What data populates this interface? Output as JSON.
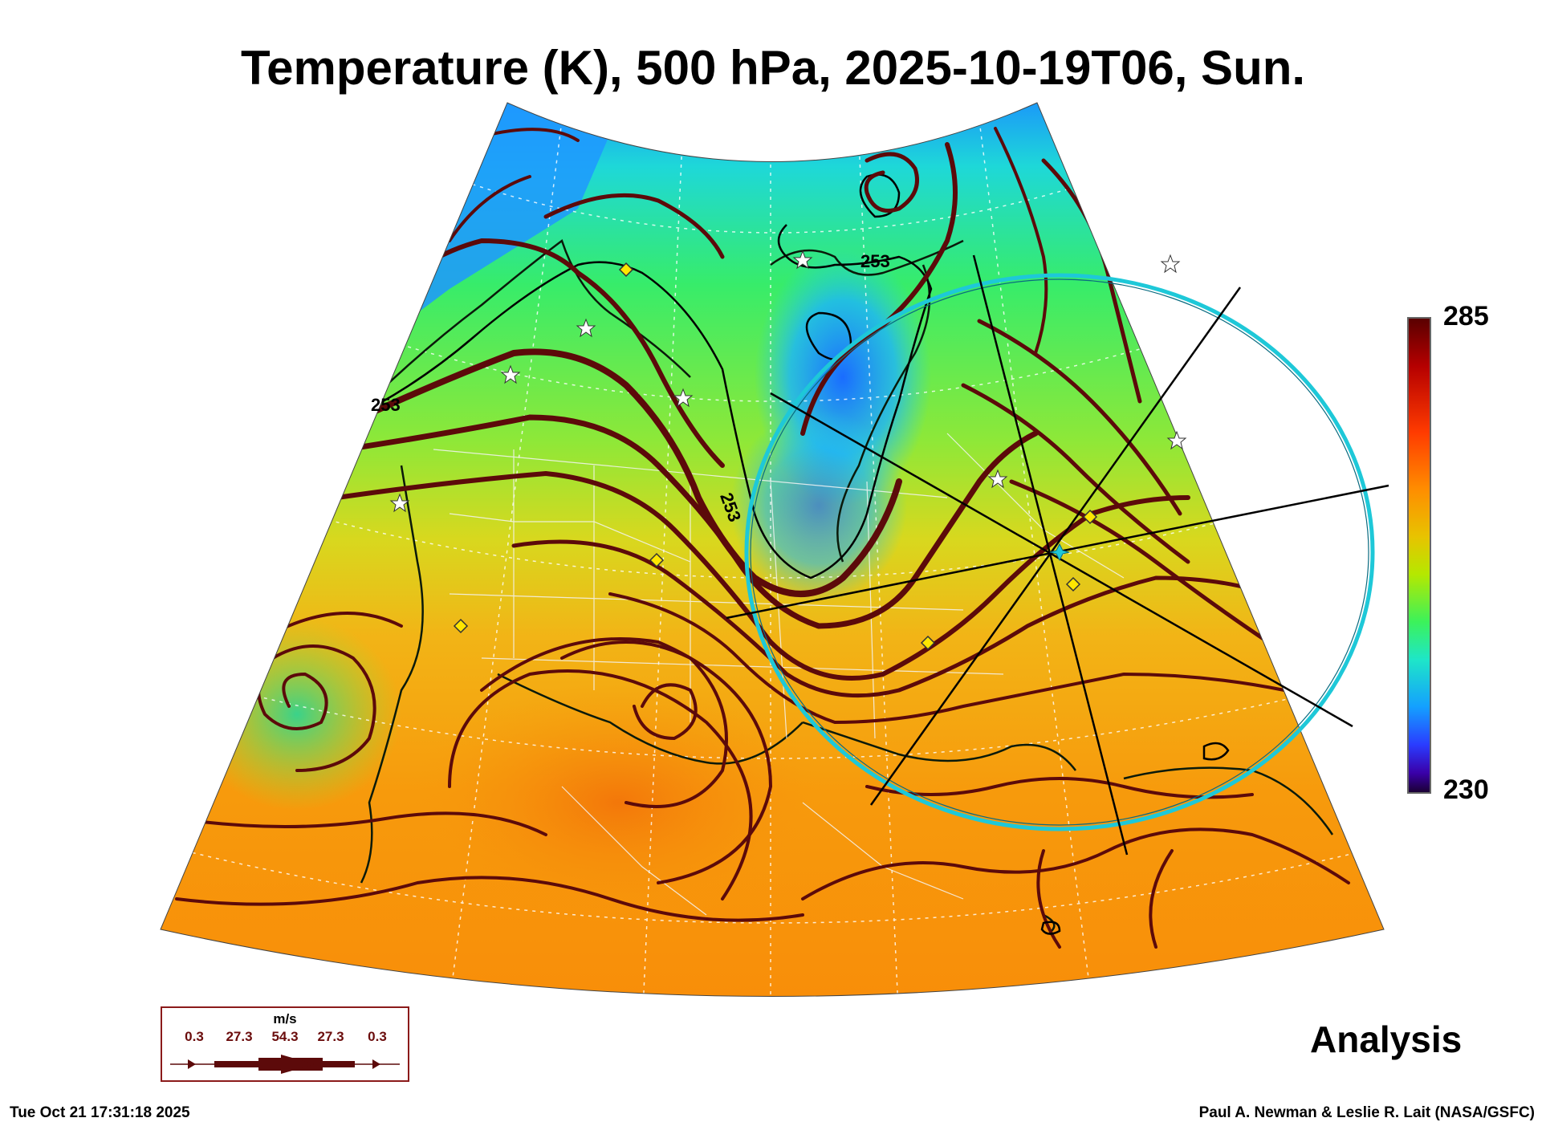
{
  "title": "Temperature (K), 500 hPa, 2025-10-19T06, Sun.",
  "colorbar": {
    "max": "285",
    "min": "230"
  },
  "contour_labels": [
    "253",
    "253",
    "253"
  ],
  "wind_legend": {
    "unit": "m/s",
    "values": [
      "0.3",
      "27.3",
      "54.3",
      "27.3",
      "0.3"
    ]
  },
  "label_analysis": "Analysis",
  "footer": {
    "timestamp": "Tue Oct 21 17:31:18 2025",
    "credit": "Paul A. Newman & Leslie R. Lait (NASA/GSFC)"
  },
  "colors": {
    "streamline": "#5c0a0a",
    "eclipse_circle": "#1ec8d8",
    "marker": "#ffe600"
  }
}
